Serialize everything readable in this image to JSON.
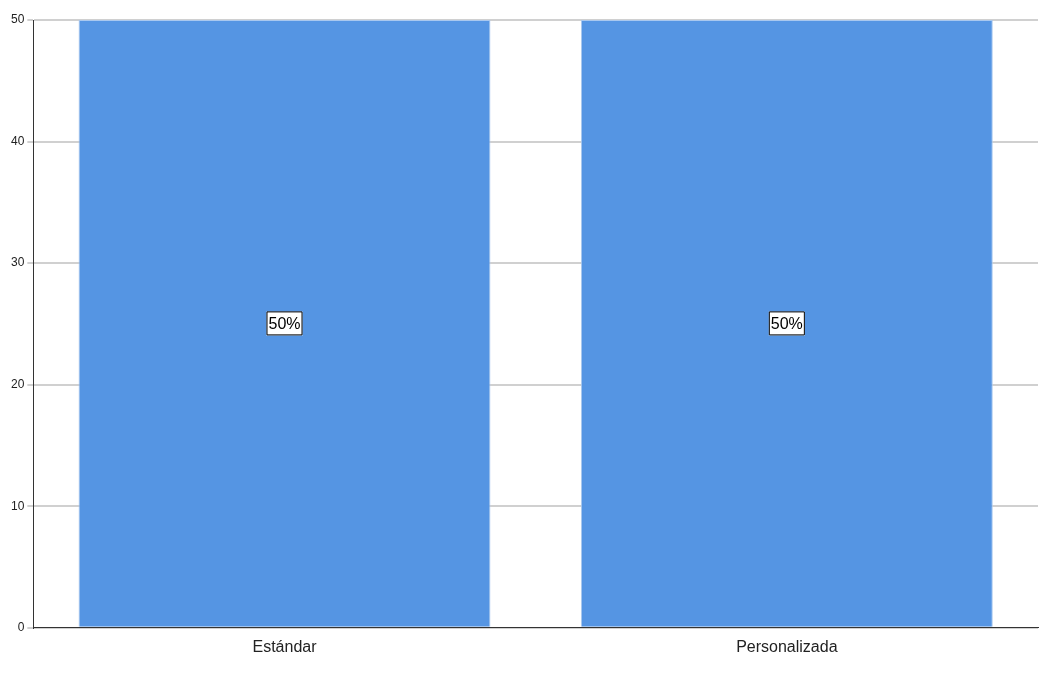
{
  "chart_data": {
    "type": "bar",
    "categories": [
      "Estándar",
      "Personalizada"
    ],
    "values": [
      50,
      50
    ],
    "color": "#5595e3",
    "value_labels": [
      "50%",
      "50%"
    ],
    "ylim": [
      0,
      50
    ],
    "yticks": [
      0,
      10,
      20,
      30,
      40,
      50
    ],
    "grid": "y",
    "legend": false
  }
}
